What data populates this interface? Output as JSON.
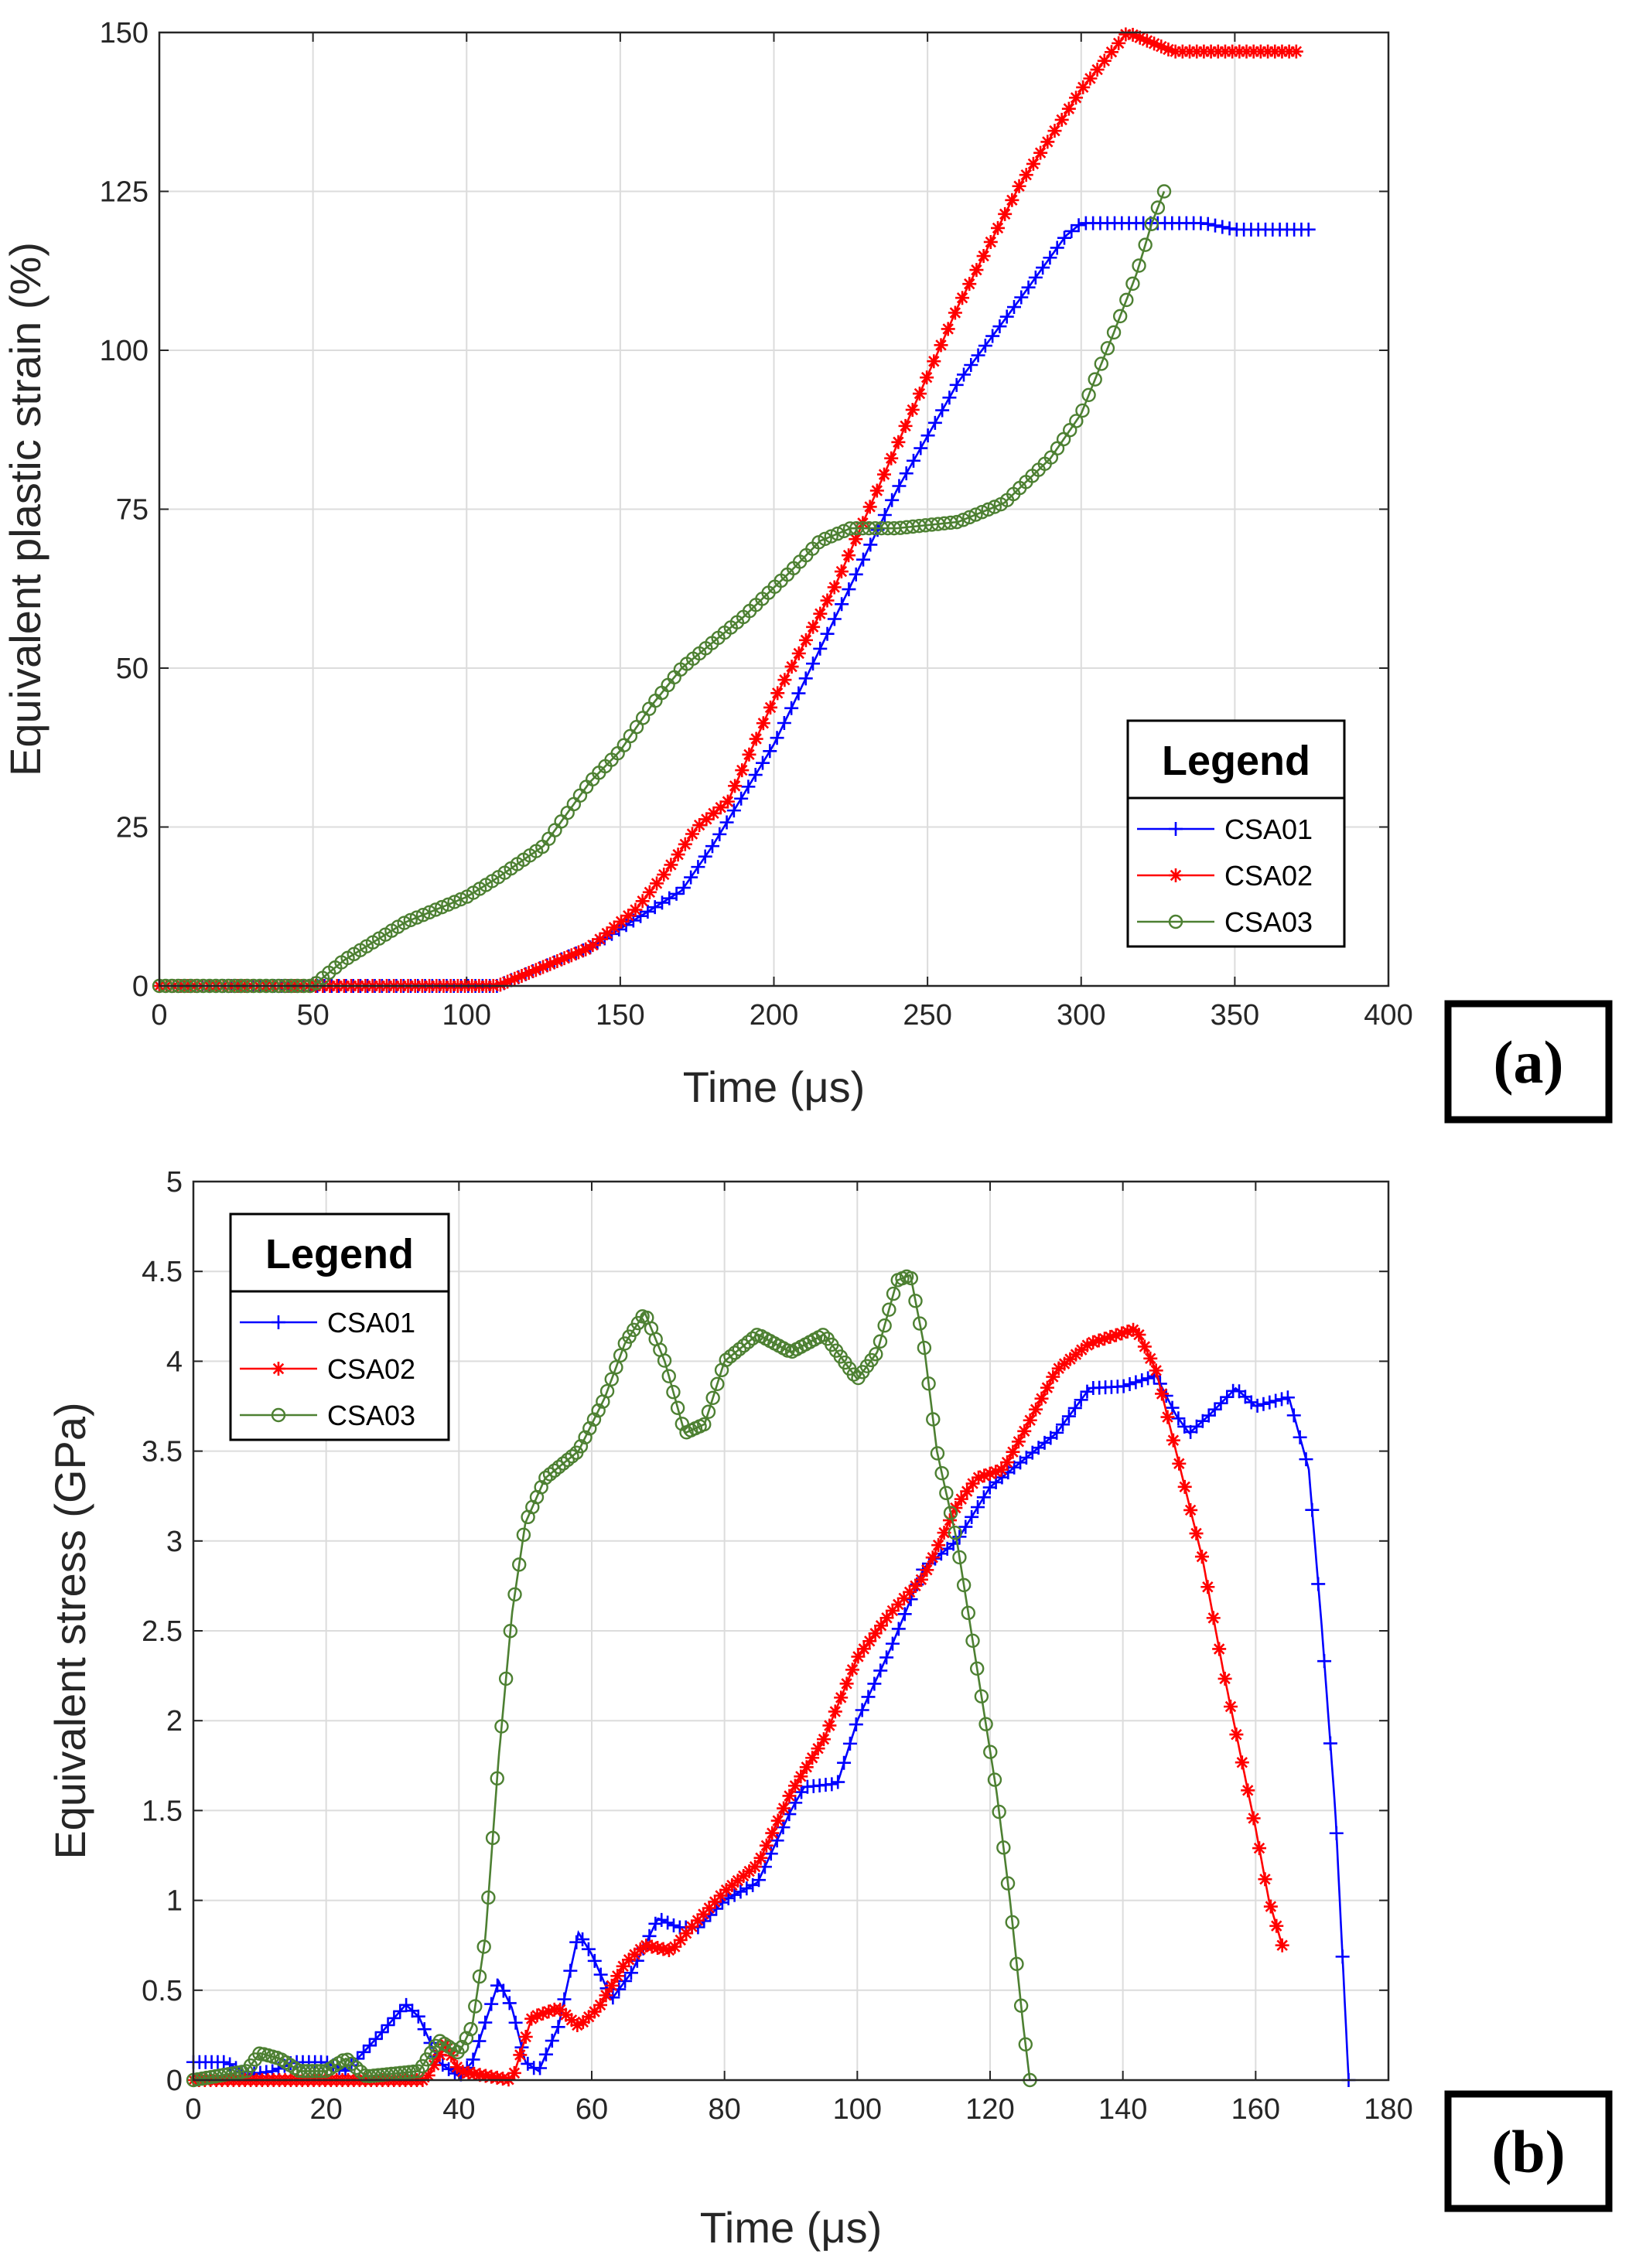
{
  "chart_data": [
    {
      "type": "line",
      "panel_label": "(a)",
      "xlabel": "Time (μs)",
      "ylabel": "Equivalent plastic strain (%)",
      "xlim": [
        0,
        400
      ],
      "ylim": [
        0,
        150
      ],
      "xticks": [
        "0",
        "50",
        "100",
        "150",
        "200",
        "250",
        "300",
        "350",
        "400"
      ],
      "yticks": [
        "0",
        "25",
        "50",
        "75",
        "100",
        "125",
        "150"
      ],
      "grid": true,
      "legend": {
        "title": "Legend",
        "placement": "bottom-right"
      },
      "series": [
        {
          "name": "CSA01",
          "color": "#0000ff",
          "marker": "plus",
          "points": [
            [
              0,
              0
            ],
            [
              50,
              0
            ],
            [
              100,
              0
            ],
            [
              110,
              0
            ],
            [
              120,
              2
            ],
            [
              140,
              6
            ],
            [
              160,
              12
            ],
            [
              170,
              15
            ],
            [
              180,
              22
            ],
            [
              200,
              38
            ],
            [
              220,
              58
            ],
            [
              240,
              78
            ],
            [
              260,
              95
            ],
            [
              280,
              108
            ],
            [
              295,
              118
            ],
            [
              300,
              120
            ],
            [
              340,
              120
            ],
            [
              350,
              119
            ],
            [
              374,
              119
            ]
          ]
        },
        {
          "name": "CSA02",
          "color": "#ff0000",
          "marker": "asterisk",
          "points": [
            [
              0,
              0
            ],
            [
              50,
              0
            ],
            [
              100,
              0
            ],
            [
              110,
              0
            ],
            [
              120,
              2
            ],
            [
              140,
              6
            ],
            [
              155,
              12
            ],
            [
              165,
              18
            ],
            [
              175,
              25
            ],
            [
              185,
              29
            ],
            [
              200,
              45
            ],
            [
              220,
              63
            ],
            [
              240,
              85
            ],
            [
              260,
              107
            ],
            [
              280,
              126
            ],
            [
              300,
              141
            ],
            [
              315,
              150
            ],
            [
              330,
              147
            ],
            [
              350,
              147
            ],
            [
              370,
              147
            ]
          ]
        },
        {
          "name": "CSA03",
          "color": "#4d8032",
          "marker": "circle",
          "points": [
            [
              0,
              0
            ],
            [
              50,
              0
            ],
            [
              60,
              4
            ],
            [
              80,
              10
            ],
            [
              100,
              14
            ],
            [
              110,
              17
            ],
            [
              125,
              22
            ],
            [
              140,
              32
            ],
            [
              150,
              37
            ],
            [
              160,
              44
            ],
            [
              170,
              50
            ],
            [
              190,
              58
            ],
            [
              205,
              65
            ],
            [
              215,
              70
            ],
            [
              225,
              72
            ],
            [
              240,
              72
            ],
            [
              260,
              73
            ],
            [
              275,
              76
            ],
            [
              290,
              83
            ],
            [
              300,
              90
            ],
            [
              310,
              102
            ],
            [
              318,
              112
            ],
            [
              323,
              120
            ],
            [
              327,
              125
            ]
          ]
        }
      ]
    },
    {
      "type": "line",
      "panel_label": "(b)",
      "xlabel": "Time (μs)",
      "ylabel": "Equivalent stress (GPa)",
      "xlim": [
        0,
        180
      ],
      "ylim": [
        0,
        5
      ],
      "xticks": [
        "0",
        "20",
        "40",
        "60",
        "80",
        "100",
        "120",
        "140",
        "160",
        "180"
      ],
      "yticks": [
        "0",
        "0.5",
        "1",
        "1.5",
        "2",
        "2.5",
        "3",
        "3.5",
        "4",
        "4.5",
        "5"
      ],
      "grid": true,
      "legend": {
        "title": "Legend",
        "placement": "top-left"
      },
      "series": [
        {
          "name": "CSA01",
          "color": "#0000ff",
          "marker": "plus",
          "points": [
            [
              0,
              0.1
            ],
            [
              5,
              0.1
            ],
            [
              8,
              0.03
            ],
            [
              12,
              0.05
            ],
            [
              15,
              0.1
            ],
            [
              20,
              0.1
            ],
            [
              23,
              0.05
            ],
            [
              28,
              0.25
            ],
            [
              32,
              0.42
            ],
            [
              34,
              0.35
            ],
            [
              37,
              0.1
            ],
            [
              40,
              0.02
            ],
            [
              42,
              0.1
            ],
            [
              46,
              0.55
            ],
            [
              48,
              0.4
            ],
            [
              50,
              0.1
            ],
            [
              52,
              0.05
            ],
            [
              55,
              0.3
            ],
            [
              58,
              0.82
            ],
            [
              60,
              0.7
            ],
            [
              63,
              0.45
            ],
            [
              66,
              0.6
            ],
            [
              70,
              0.9
            ],
            [
              73,
              0.85
            ],
            [
              76,
              0.85
            ],
            [
              80,
              1.0
            ],
            [
              85,
              1.1
            ],
            [
              90,
              1.5
            ],
            [
              92,
              1.63
            ],
            [
              97,
              1.65
            ],
            [
              100,
              2.0
            ],
            [
              105,
              2.4
            ],
            [
              110,
              2.85
            ],
            [
              115,
              3.0
            ],
            [
              120,
              3.3
            ],
            [
              125,
              3.45
            ],
            [
              130,
              3.6
            ],
            [
              135,
              3.85
            ],
            [
              140,
              3.86
            ],
            [
              145,
              3.92
            ],
            [
              148,
              3.7
            ],
            [
              150,
              3.6
            ],
            [
              153,
              3.7
            ],
            [
              157,
              3.85
            ],
            [
              160,
              3.75
            ],
            [
              163,
              3.78
            ],
            [
              165,
              3.8
            ],
            [
              168,
              3.4
            ],
            [
              170,
              2.5
            ],
            [
              172,
              1.5
            ],
            [
              174,
              0.0
            ]
          ]
        },
        {
          "name": "CSA02",
          "color": "#ff0000",
          "marker": "asterisk",
          "points": [
            [
              0,
              0
            ],
            [
              8,
              0
            ],
            [
              35,
              0
            ],
            [
              38,
              0.2
            ],
            [
              40,
              0.05
            ],
            [
              43,
              0.03
            ],
            [
              48,
              0.0
            ],
            [
              51,
              0.35
            ],
            [
              55,
              0.4
            ],
            [
              58,
              0.3
            ],
            [
              61,
              0.4
            ],
            [
              65,
              0.65
            ],
            [
              68,
              0.75
            ],
            [
              72,
              0.72
            ],
            [
              75,
              0.85
            ],
            [
              80,
              1.05
            ],
            [
              85,
              1.2
            ],
            [
              90,
              1.6
            ],
            [
              95,
              1.9
            ],
            [
              100,
              2.35
            ],
            [
              105,
              2.6
            ],
            [
              110,
              2.8
            ],
            [
              115,
              3.2
            ],
            [
              118,
              3.35
            ],
            [
              122,
              3.4
            ],
            [
              125,
              3.6
            ],
            [
              130,
              3.95
            ],
            [
              135,
              4.1
            ],
            [
              142,
              4.18
            ],
            [
              145,
              3.95
            ],
            [
              148,
              3.5
            ],
            [
              152,
              2.9
            ],
            [
              155,
              2.3
            ],
            [
              160,
              1.4
            ],
            [
              162,
              1.0
            ],
            [
              164,
              0.75
            ]
          ]
        },
        {
          "name": "CSA03",
          "color": "#4d8032",
          "marker": "circle",
          "points": [
            [
              0,
              0
            ],
            [
              8,
              0.05
            ],
            [
              10,
              0.15
            ],
            [
              13,
              0.12
            ],
            [
              16,
              0.05
            ],
            [
              20,
              0.05
            ],
            [
              23,
              0.12
            ],
            [
              26,
              0.02
            ],
            [
              34,
              0.05
            ],
            [
              37,
              0.22
            ],
            [
              40,
              0.15
            ],
            [
              42,
              0.3
            ],
            [
              44,
              0.8
            ],
            [
              46,
              1.8
            ],
            [
              48,
              2.6
            ],
            [
              50,
              3.1
            ],
            [
              53,
              3.35
            ],
            [
              58,
              3.5
            ],
            [
              62,
              3.8
            ],
            [
              65,
              4.1
            ],
            [
              68,
              4.27
            ],
            [
              71,
              4.0
            ],
            [
              74,
              3.6
            ],
            [
              77,
              3.65
            ],
            [
              80,
              4.0
            ],
            [
              85,
              4.15
            ],
            [
              90,
              4.05
            ],
            [
              95,
              4.15
            ],
            [
              100,
              3.9
            ],
            [
              103,
              4.05
            ],
            [
              106,
              4.45
            ],
            [
              108,
              4.48
            ],
            [
              110,
              4.1
            ],
            [
              112,
              3.5
            ],
            [
              115,
              3.0
            ],
            [
              118,
              2.3
            ],
            [
              121,
              1.6
            ],
            [
              123,
              1.0
            ],
            [
              125,
              0.3
            ],
            [
              126,
              0.0
            ]
          ]
        }
      ]
    }
  ]
}
